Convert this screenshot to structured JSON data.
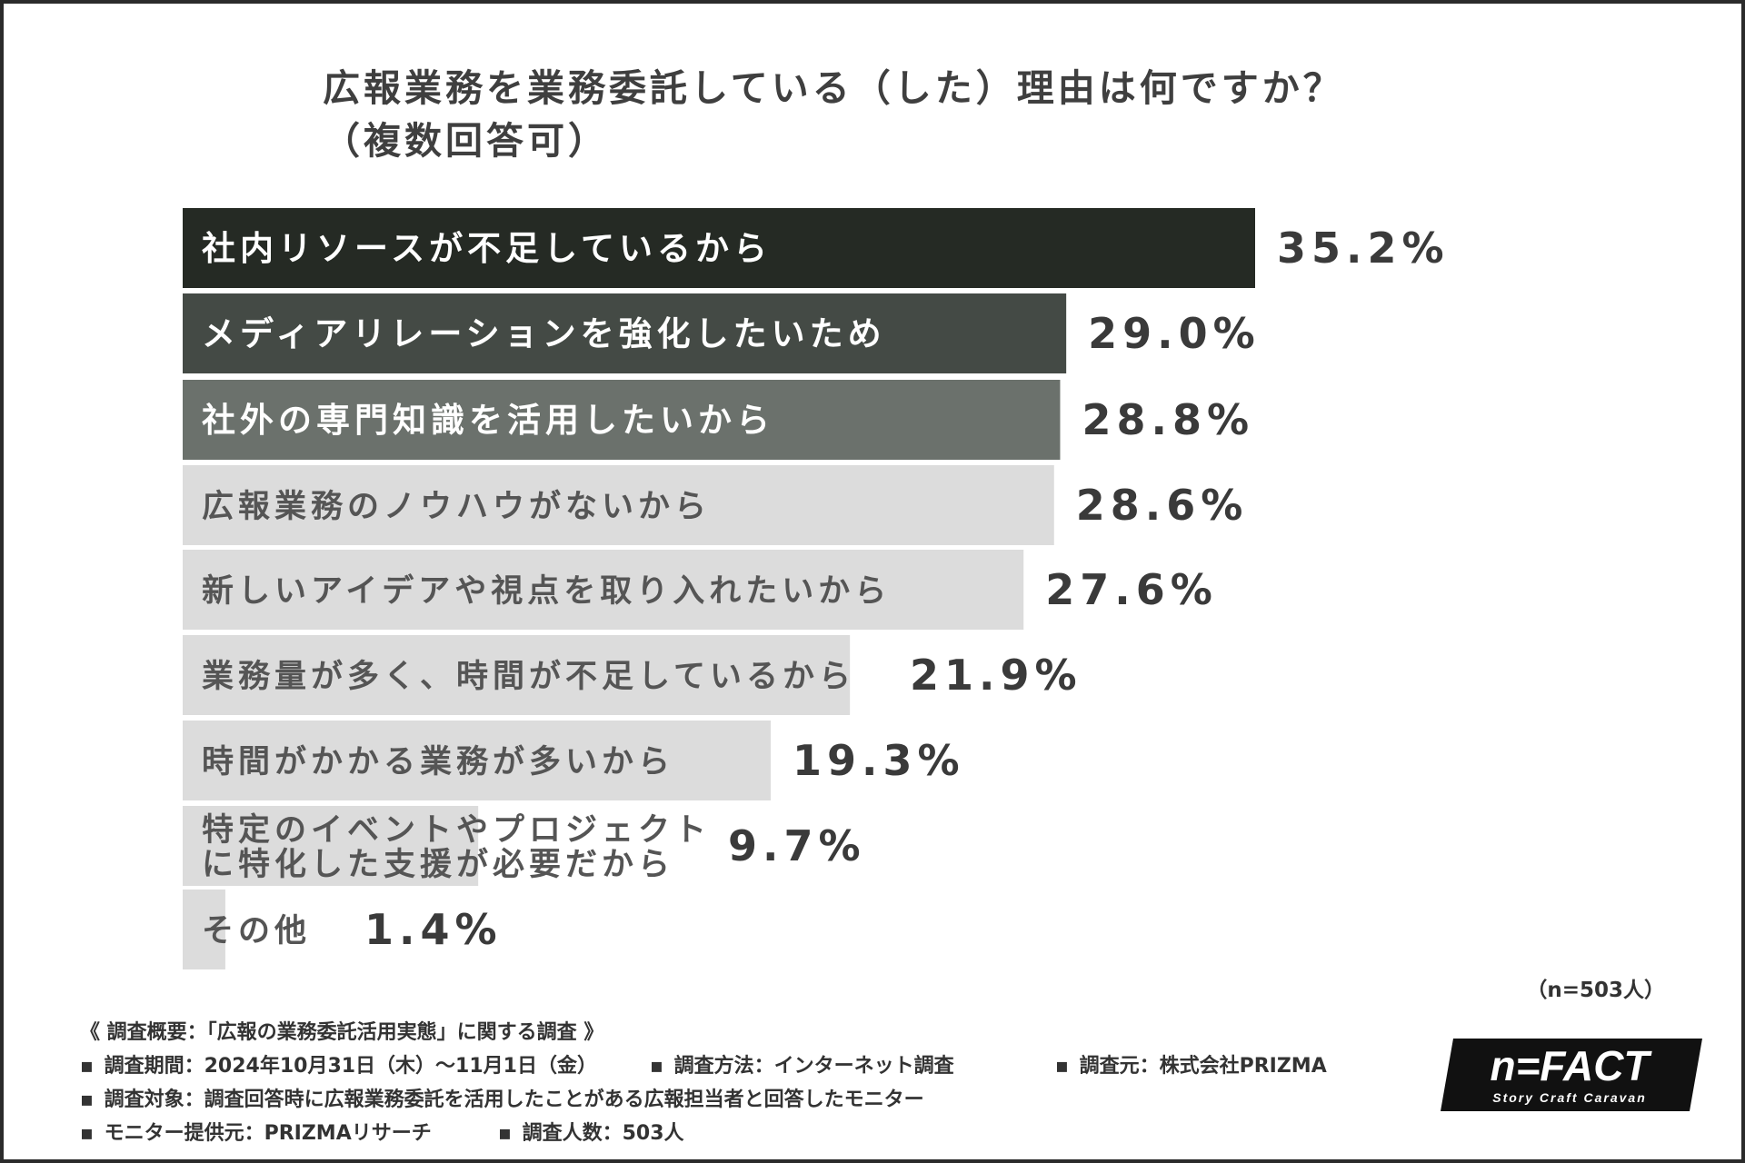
{
  "title_line1": "広報業務を業務委託している（した）理由は何ですか？",
  "title_line2": "（複数回答可）",
  "chart_data": {
    "type": "bar",
    "orientation": "horizontal",
    "categories": [
      "社内リソースが不足しているから",
      "メディアリレーションを強化したいため",
      "社外の専門知識を活用したいから",
      "広報業務のノウハウがないから",
      "新しいアイデアや視点を取り入れたいから",
      "業務量が多く、時間が不足しているから",
      "時間がかかる業務が多いから",
      "特定のイベントやプロジェクトに特化した支援が必要だから",
      "その他"
    ],
    "category_lines": [
      [
        "社内リソースが不足しているから"
      ],
      [
        "メディアリレーションを強化したいため"
      ],
      [
        "社外の専門知識を活用したいから"
      ],
      [
        "広報業務のノウハウがないから"
      ],
      [
        "新しいアイデアや視点を取り入れたいから"
      ],
      [
        "業務量が多く、時間が不足しているから"
      ],
      [
        "時間がかかる業務が多いから"
      ],
      [
        "特定のイベントやプロジェクト",
        "に特化した支援が必要だから"
      ],
      [
        "その他"
      ]
    ],
    "values": [
      35.2,
      29.0,
      28.8,
      28.6,
      27.6,
      21.9,
      19.3,
      9.7,
      1.4
    ],
    "value_labels": [
      "35.2%",
      "29.0%",
      "28.8%",
      "28.6%",
      "27.6%",
      "21.9%",
      "19.3%",
      "9.7%",
      "1.4%"
    ],
    "bar_colors": [
      "#252a24",
      "#444a45",
      "#6b716c",
      "#dcdcdc",
      "#dcdcdc",
      "#dcdcdc",
      "#dcdcdc",
      "#dcdcdc",
      "#dcdcdc"
    ],
    "label_colors": [
      "#ffffff",
      "#ffffff",
      "#ffffff",
      "#555555",
      "#555555",
      "#555555",
      "#555555",
      "#555555",
      "#555555"
    ],
    "xlim": [
      0,
      35.2
    ],
    "grid": false,
    "legend": "none"
  },
  "sample_note": "（n=503人）",
  "survey": {
    "heading": "《 調査概要：「広報の業務委託活用実態」に関する調査 》",
    "bullet": "▪",
    "period": "調査期間：2024年10月31日（木）〜11月1日（金）",
    "method": "調査方法：インターネット調査",
    "source": "調査元：株式会社PRIZMA",
    "target": "調査対象：調査回答時に広報業務委託を活用したことがある広報担当者と回答したモニター",
    "provider": "モニター提供元：PRIZMAリサーチ",
    "count": "調査人数：503人"
  },
  "logo": {
    "brand": "n=FACT",
    "tagline": "Story Craft Caravan",
    "bg_color": "#111111",
    "text_color": "#ffffff"
  }
}
